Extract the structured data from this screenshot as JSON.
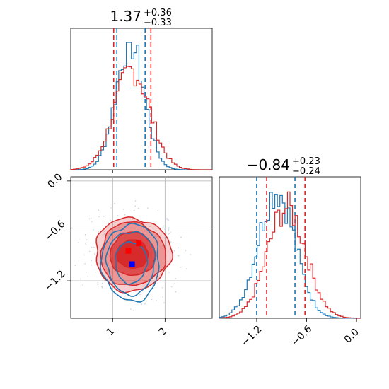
{
  "colors": {
    "series_a": "#1f77b4",
    "series_b": "#d62728",
    "grid": "#b0b0b0"
  },
  "titles": {
    "p1": {
      "value": "1.37",
      "plus": "+0.36",
      "minus": "−0.33"
    },
    "p2": {
      "value": "−0.84",
      "plus": "+0.23",
      "minus": "−0.24"
    }
  },
  "chart_data": {
    "type": "corner",
    "parameters": [
      "p1",
      "p2"
    ],
    "grid": true,
    "p1_range": [
      0.2,
      2.9
    ],
    "p2_range": [
      -1.65,
      0.05
    ],
    "x_ticks_p1": [
      {
        "value": 1,
        "label": "1"
      },
      {
        "value": 2,
        "label": "2"
      }
    ],
    "y_ticks_p2": [
      {
        "value": 0.0,
        "label": "0.0"
      },
      {
        "value": -0.6,
        "label": "−0.6"
      },
      {
        "value": -1.2,
        "label": "−1.2"
      }
    ],
    "x_ticks_p2": [
      {
        "value": -1.2,
        "label": "−1.2"
      },
      {
        "value": -0.6,
        "label": "−0.6"
      },
      {
        "value": 0.0,
        "label": "0.0"
      }
    ],
    "series": [
      {
        "color": "#1f77b4",
        "p1_quantiles": [
          1.08,
          1.62
        ],
        "p2_quantiles": [
          -1.2,
          -0.74
        ],
        "p1_hist": {
          "mean": 1.33,
          "sd": 0.27,
          "peak": 1.0
        },
        "p2_hist": {
          "mean": -0.96,
          "sd": 0.22,
          "peak": 1.0
        },
        "marker": [
          1.37,
          -1.0
        ]
      },
      {
        "color": "#d62728",
        "p1_quantiles": [
          1.02,
          1.73
        ],
        "p2_quantiles": [
          -1.08,
          -0.62
        ],
        "p1_hist": {
          "mean": 1.37,
          "sd": 0.34,
          "peak": 0.78
        },
        "p2_hist": {
          "mean": -0.84,
          "sd": 0.23,
          "peak": 0.87
        },
        "markers": [
          [
            1.3,
            -0.84
          ],
          [
            1.5,
            -0.75
          ]
        ]
      }
    ]
  }
}
